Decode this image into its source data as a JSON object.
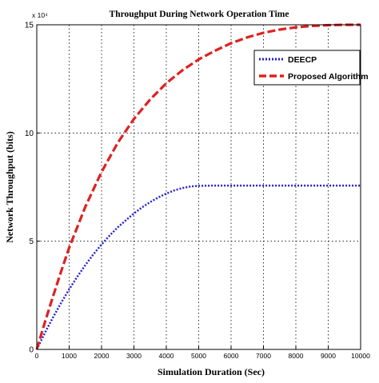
{
  "chart_data": {
    "type": "line",
    "title": "Throughput During Network Operation Time",
    "xlabel": "Simulation Duration (Sec)",
    "ylabel": "Network Throughput (bits)",
    "xlim": [
      0,
      10000
    ],
    "ylim": [
      0,
      150000
    ],
    "y_exponent_label": "x 10⁴",
    "x_ticks": [
      0,
      1000,
      2000,
      3000,
      4000,
      5000,
      6000,
      7000,
      8000,
      9000,
      10000
    ],
    "x_tick_labels": [
      "0",
      "1000",
      "2000",
      "3000",
      "4000",
      "5000",
      "6000",
      "7000",
      "8000",
      "9000",
      "10000"
    ],
    "y_ticks": [
      0,
      50000,
      100000,
      150000
    ],
    "y_tick_labels": [
      "0",
      "5",
      "10",
      "15"
    ],
    "grid": true,
    "legend_position": "top-right",
    "series": [
      {
        "name": "DEECP",
        "color": "#2020d0",
        "line_style": "dotted",
        "x": [
          0,
          250,
          500,
          750,
          1000,
          1250,
          1500,
          1750,
          2000,
          2250,
          2500,
          2750,
          3000,
          3250,
          3500,
          3750,
          4000,
          4250,
          4500,
          4750,
          5000,
          5500,
          6000,
          7000,
          8000,
          9000,
          10000
        ],
        "y": [
          0,
          7600,
          14800,
          21500,
          27800,
          33600,
          39000,
          44000,
          48500,
          52600,
          56400,
          59700,
          62800,
          65600,
          68100,
          70200,
          72000,
          73500,
          74600,
          75300,
          75600,
          75700,
          75700,
          75700,
          75700,
          75700,
          75700
        ]
      },
      {
        "name": "Proposed Algorithm",
        "color": "#e02020",
        "line_style": "dashed",
        "x": [
          0,
          250,
          500,
          750,
          1000,
          1500,
          2000,
          2500,
          3000,
          3500,
          4000,
          4500,
          5000,
          5500,
          6000,
          6500,
          7000,
          7500,
          8000,
          8500,
          9000,
          9500,
          10000
        ],
        "y": [
          0,
          12500,
          24500,
          36000,
          47000,
          66000,
          82000,
          95500,
          106500,
          115500,
          123000,
          129000,
          134000,
          138000,
          141500,
          144200,
          146300,
          147800,
          148800,
          149500,
          149800,
          150000,
          150000
        ]
      }
    ]
  }
}
